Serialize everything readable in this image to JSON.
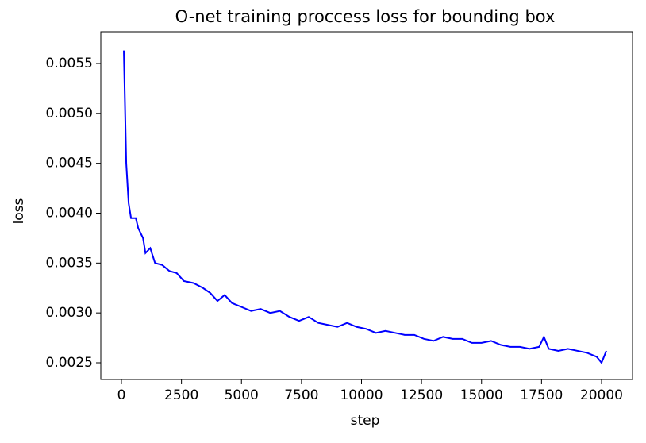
{
  "chart_data": {
    "type": "line",
    "title": "O-net training proccess loss for bounding box",
    "x_label": "step",
    "y_label": "loss",
    "series": [
      {
        "color": "#0000ff",
        "x": [
          100,
          200,
          300,
          400,
          600,
          700,
          900,
          1000,
          1200,
          1400,
          1700,
          2000,
          2300,
          2600,
          3000,
          3400,
          3700,
          4000,
          4300,
          4600,
          5000,
          5400,
          5800,
          6200,
          6600,
          7000,
          7400,
          7800,
          8200,
          8600,
          9000,
          9400,
          9800,
          10200,
          10600,
          11000,
          11400,
          11800,
          12200,
          12600,
          13000,
          13400,
          13800,
          14200,
          14600,
          15000,
          15400,
          15800,
          16200,
          16600,
          17000,
          17400,
          17600,
          17800,
          18200,
          18600,
          19000,
          19400,
          19800,
          20000,
          20200
        ],
        "values": [
          0.00563,
          0.0045,
          0.0041,
          0.00395,
          0.00395,
          0.00385,
          0.00375,
          0.0036,
          0.00365,
          0.0035,
          0.00348,
          0.00342,
          0.0034,
          0.00332,
          0.0033,
          0.00325,
          0.0032,
          0.00312,
          0.00318,
          0.0031,
          0.00306,
          0.00302,
          0.00304,
          0.003,
          0.00302,
          0.00296,
          0.00292,
          0.00296,
          0.0029,
          0.00288,
          0.00286,
          0.0029,
          0.00286,
          0.00284,
          0.0028,
          0.00282,
          0.0028,
          0.00278,
          0.00278,
          0.00274,
          0.00272,
          0.00276,
          0.00274,
          0.00274,
          0.0027,
          0.0027,
          0.00272,
          0.00268,
          0.00266,
          0.00266,
          0.00264,
          0.00266,
          0.00276,
          0.00264,
          0.00262,
          0.00264,
          0.00262,
          0.0026,
          0.00256,
          0.0025,
          0.00262
        ]
      }
    ],
    "xlim": [
      -860,
      21290
    ],
    "xticks": [
      0,
      2500,
      5000,
      7500,
      10000,
      12500,
      15000,
      17500,
      20000
    ],
    "ylim": [
      0.002333,
      0.005818
    ],
    "yticks": [
      0.0025,
      0.003,
      {
        "value": 0.003,
        "label": "0.0030"
      },
      0.0035,
      {
        "value": 0.004,
        "label": "0.0040"
      },
      0.0045,
      {
        "value": 0.005,
        "label": "0.0050"
      },
      0.0055
    ]
  }
}
